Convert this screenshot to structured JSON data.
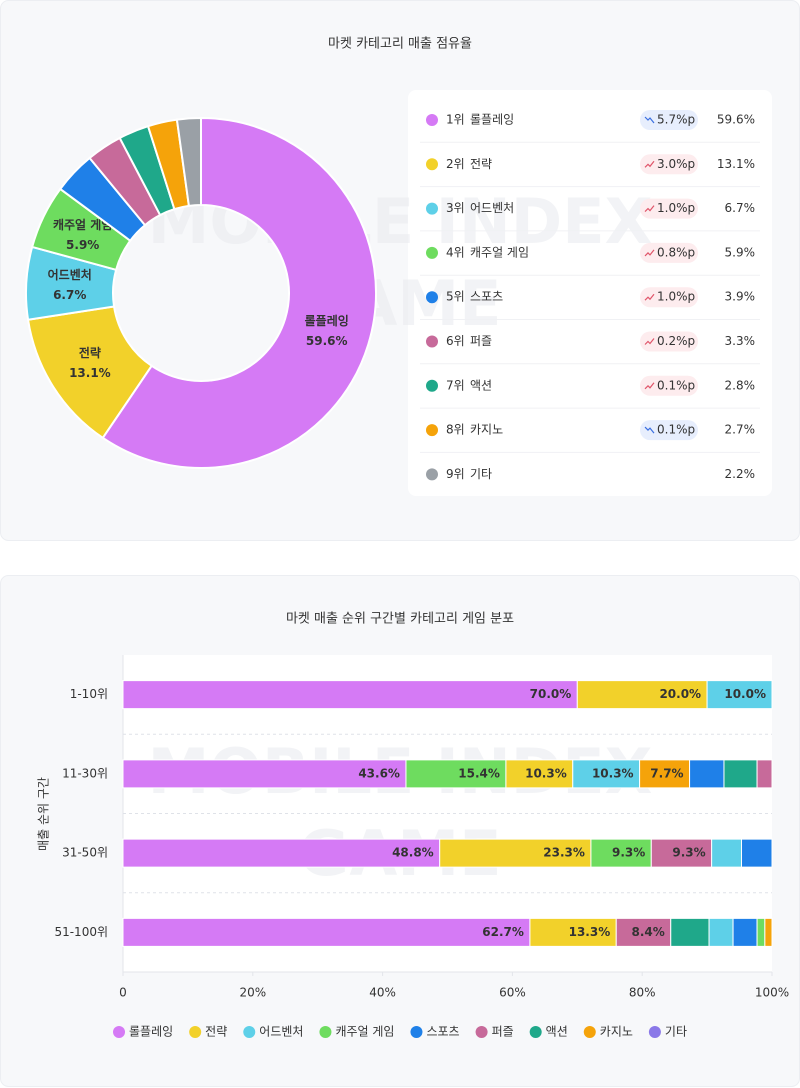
{
  "chart_data": [
    {
      "type": "pie",
      "donut": true,
      "title": "마켓 카테고리 매출 점유율",
      "watermark": [
        "MOBILE INDEX",
        "GAME"
      ],
      "categories": [
        "롤플레잉",
        "전략",
        "어드벤처",
        "캐주얼 게임",
        "스포츠",
        "퍼즐",
        "액션",
        "카지노",
        "기타"
      ],
      "ranks": [
        "1위",
        "2위",
        "3위",
        "4위",
        "5위",
        "6위",
        "7위",
        "8위",
        "9위"
      ],
      "values": [
        59.6,
        13.1,
        6.7,
        5.9,
        3.9,
        3.3,
        2.8,
        2.7,
        2.2
      ],
      "value_labels": [
        "59.6%",
        "13.1%",
        "6.7%",
        "5.9%",
        "3.9%",
        "3.3%",
        "2.8%",
        "2.7%",
        "2.2%"
      ],
      "colors": [
        "#d57af5",
        "#f2d12a",
        "#5ed0e8",
        "#6edc5f",
        "#1f80e8",
        "#c76a9a",
        "#1fa88a",
        "#f5a30a",
        "#9aa0a6"
      ],
      "changes": [
        {
          "value": 5.7,
          "label": "5.7%p",
          "direction": "down"
        },
        {
          "value": 3.0,
          "label": "3.0%p",
          "direction": "up"
        },
        {
          "value": 1.0,
          "label": "1.0%p",
          "direction": "up"
        },
        {
          "value": 0.8,
          "label": "0.8%p",
          "direction": "up"
        },
        {
          "value": 1.0,
          "label": "1.0%p",
          "direction": "up"
        },
        {
          "value": 0.2,
          "label": "0.2%p",
          "direction": "up"
        },
        {
          "value": 0.1,
          "label": "0.1%p",
          "direction": "up"
        },
        {
          "value": 0.1,
          "label": "0.1%p",
          "direction": "down"
        },
        null
      ]
    },
    {
      "type": "stacked_bar",
      "orientation": "horizontal",
      "title": "마켓 매출 순위 구간별 카테고리 게임 분포",
      "watermark": [
        "MOBILE INDEX",
        "GAME"
      ],
      "y_label": "매출 순위 구간",
      "legend": "bottom",
      "series": [
        {
          "name": "롤플레잉",
          "color": "#d57af5"
        },
        {
          "name": "전략",
          "color": "#f2d12a"
        },
        {
          "name": "어드벤처",
          "color": "#5ed0e8"
        },
        {
          "name": "캐주얼 게임",
          "color": "#6edc5f"
        },
        {
          "name": "스포츠",
          "color": "#1f80e8"
        },
        {
          "name": "퍼즐",
          "color": "#c76a9a"
        },
        {
          "name": "액션",
          "color": "#1fa88a"
        },
        {
          "name": "카지노",
          "color": "#f5a30a"
        },
        {
          "name": "기타",
          "color": "#8a78e8"
        }
      ],
      "categories": [
        "1-10위",
        "11-30위",
        "31-50위",
        "51-100위"
      ],
      "rows": [
        [
          {
            "name": "롤플레잉",
            "value": 70.0,
            "value_label": "70.0%"
          },
          {
            "name": "전략",
            "value": 20.0,
            "value_label": "20.0%"
          },
          {
            "name": "어드벤처",
            "value": 10.0,
            "value_label": "10.0%"
          }
        ],
        [
          {
            "name": "롤플레잉",
            "value": 43.6,
            "value_label": "43.6%"
          },
          {
            "name": "캐주얼 게임",
            "value": 15.4,
            "value_label": "15.4%"
          },
          {
            "name": "전략",
            "value": 10.3,
            "value_label": "10.3%"
          },
          {
            "name": "어드벤처",
            "value": 10.3,
            "value_label": "10.3%"
          },
          {
            "name": "카지노",
            "value": 7.7,
            "value_label": "7.7%"
          },
          {
            "name": "스포츠",
            "value": 5.3
          },
          {
            "name": "액션",
            "value": 5.1
          },
          {
            "name": "퍼즐",
            "value": 2.3
          }
        ],
        [
          {
            "name": "롤플레잉",
            "value": 48.8,
            "value_label": "48.8%"
          },
          {
            "name": "전략",
            "value": 23.3,
            "value_label": "23.3%"
          },
          {
            "name": "캐주얼 게임",
            "value": 9.3,
            "value_label": "9.3%"
          },
          {
            "name": "퍼즐",
            "value": 9.3,
            "value_label": "9.3%"
          },
          {
            "name": "어드벤처",
            "value": 4.6
          },
          {
            "name": "스포츠",
            "value": 4.7
          }
        ],
        [
          {
            "name": "롤플레잉",
            "value": 62.7,
            "value_label": "62.7%"
          },
          {
            "name": "전략",
            "value": 13.3,
            "value_label": "13.3%"
          },
          {
            "name": "퍼즐",
            "value": 8.4,
            "value_label": "8.4%"
          },
          {
            "name": "액션",
            "value": 5.9
          },
          {
            "name": "어드벤처",
            "value": 3.7
          },
          {
            "name": "스포츠",
            "value": 3.7
          },
          {
            "name": "캐주얼 게임",
            "value": 1.2
          },
          {
            "name": "카지노",
            "value": 1.1
          }
        ]
      ],
      "xlim": [
        0,
        100
      ],
      "xticks": [
        0,
        {
          "value": 20,
          "label": "20%"
        },
        {
          "value": 40,
          "label": "40%"
        },
        {
          "value": 60,
          "label": "60%"
        },
        {
          "value": 80,
          "label": "80%"
        },
        {
          "value": 100,
          "label": "100%"
        }
      ]
    }
  ]
}
